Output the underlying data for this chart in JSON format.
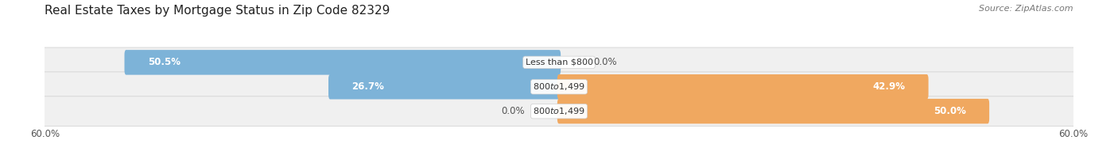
{
  "title": "Real Estate Taxes by Mortgage Status in Zip Code 82329",
  "source": "Source: ZipAtlas.com",
  "rows": [
    {
      "label": "Less than $800",
      "without_mortgage": 50.5,
      "with_mortgage": 0.0
    },
    {
      "label": "$800 to $1,499",
      "without_mortgage": 26.7,
      "with_mortgage": 42.9
    },
    {
      "label": "$800 to $1,499",
      "without_mortgage": 0.0,
      "with_mortgage": 50.0
    }
  ],
  "xlim": 60.0,
  "color_without": "#7db3d8",
  "color_with": "#f0a860",
  "color_without_pale": "#c8dff0",
  "color_with_pale": "#f7d5a8",
  "bar_height": 0.62,
  "background_bar": "#e8e8e8",
  "title_fontsize": 11,
  "value_fontsize": 8.5,
  "label_fontsize": 8,
  "tick_fontsize": 8.5
}
